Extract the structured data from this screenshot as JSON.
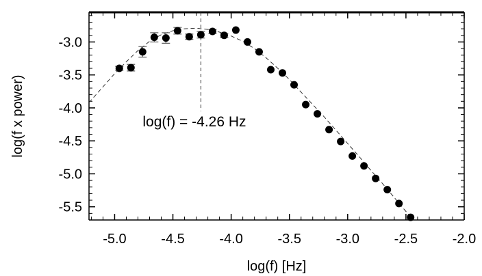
{
  "chart_data": {
    "type": "scatter",
    "xlabel": "log(f) [Hz]",
    "ylabel": "log(f x power)",
    "xlim": [
      -5.22,
      -2.0
    ],
    "ylim": [
      -5.7,
      -2.55
    ],
    "xticks": [
      "-5.0",
      "-4.5",
      "-4.0",
      "-3.5",
      "-3.0",
      "-2.5",
      "-2.0"
    ],
    "xtick_values": [
      -5.0,
      -4.5,
      -4.0,
      -3.5,
      -3.0,
      -2.5,
      -2.0
    ],
    "yticks": [
      "-3.0",
      "-3.5",
      "-4.0",
      "-4.5",
      "-5.0",
      "-5.5"
    ],
    "ytick_values": [
      -3.0,
      -3.5,
      -4.0,
      -4.5,
      -5.0,
      -5.5
    ],
    "grid": false,
    "series": [
      {
        "marker": "filled-circle",
        "color": "#000000",
        "points": [
          {
            "x": -4.96,
            "y": -3.4,
            "err": 0.03
          },
          {
            "x": -4.86,
            "y": -3.39,
            "err": 0.05
          },
          {
            "x": -4.76,
            "y": -3.15,
            "err": 0.08
          },
          {
            "x": -4.66,
            "y": -2.93,
            "err": 0.07
          },
          {
            "x": -4.56,
            "y": -2.94,
            "err": 0.08
          },
          {
            "x": -4.46,
            "y": -2.83,
            "err": 0.05
          },
          {
            "x": -4.36,
            "y": -2.92,
            "err": 0.04
          },
          {
            "x": -4.26,
            "y": -2.89,
            "err": 0.05
          },
          {
            "x": -4.16,
            "y": -2.84,
            "err": 0.03
          },
          {
            "x": -4.06,
            "y": -2.9,
            "err": 0.03
          },
          {
            "x": -3.96,
            "y": -2.82,
            "err": 0.0
          },
          {
            "x": -3.86,
            "y": -3.0,
            "err": 0.0
          },
          {
            "x": -3.76,
            "y": -3.15,
            "err": 0.0
          },
          {
            "x": -3.66,
            "y": -3.42,
            "err": 0.0
          },
          {
            "x": -3.56,
            "y": -3.47,
            "err": 0.0
          },
          {
            "x": -3.46,
            "y": -3.65,
            "err": 0.0
          },
          {
            "x": -3.36,
            "y": -3.95,
            "err": 0.0
          },
          {
            "x": -3.26,
            "y": -4.09,
            "err": 0.0
          },
          {
            "x": -3.16,
            "y": -4.33,
            "err": 0.0
          },
          {
            "x": -3.06,
            "y": -4.51,
            "err": 0.0
          },
          {
            "x": -2.96,
            "y": -4.73,
            "err": 0.0
          },
          {
            "x": -2.86,
            "y": -4.88,
            "err": 0.0
          },
          {
            "x": -2.76,
            "y": -5.07,
            "err": 0.0
          },
          {
            "x": -2.66,
            "y": -5.24,
            "err": 0.0
          },
          {
            "x": -2.56,
            "y": -5.45,
            "err": 0.0
          },
          {
            "x": -2.46,
            "y": -5.66,
            "err": 0.0
          }
        ]
      }
    ],
    "fit_curve": {
      "style": "dashed",
      "color": "#333333",
      "points": [
        {
          "x": -5.22,
          "y": -3.92
        },
        {
          "x": -5.1,
          "y": -3.68
        },
        {
          "x": -5.0,
          "y": -3.48
        },
        {
          "x": -4.9,
          "y": -3.3
        },
        {
          "x": -4.8,
          "y": -3.13
        },
        {
          "x": -4.7,
          "y": -2.99
        },
        {
          "x": -4.6,
          "y": -2.89
        },
        {
          "x": -4.5,
          "y": -2.83
        },
        {
          "x": -4.4,
          "y": -2.8
        },
        {
          "x": -4.3,
          "y": -2.79
        },
        {
          "x": -4.2,
          "y": -2.81
        },
        {
          "x": -4.1,
          "y": -2.85
        },
        {
          "x": -4.0,
          "y": -2.91
        },
        {
          "x": -3.9,
          "y": -2.99
        },
        {
          "x": -3.8,
          "y": -3.1
        },
        {
          "x": -3.7,
          "y": -3.24
        },
        {
          "x": -3.6,
          "y": -3.4
        },
        {
          "x": -3.5,
          "y": -3.57
        },
        {
          "x": -3.4,
          "y": -3.76
        },
        {
          "x": -3.3,
          "y": -3.95
        },
        {
          "x": -3.2,
          "y": -4.14
        },
        {
          "x": -3.1,
          "y": -4.34
        },
        {
          "x": -3.0,
          "y": -4.54
        },
        {
          "x": -2.9,
          "y": -4.74
        },
        {
          "x": -2.8,
          "y": -4.95
        },
        {
          "x": -2.7,
          "y": -5.15
        },
        {
          "x": -2.6,
          "y": -5.36
        },
        {
          "x": -2.5,
          "y": -5.57
        },
        {
          "x": -2.44,
          "y": -5.7
        }
      ]
    },
    "vertical_marker": {
      "x": -4.26,
      "style": "dashed",
      "y_top": -2.55,
      "y_bottom": -4.05
    },
    "annotation": {
      "text": "log(f) = -4.26 Hz",
      "x": -4.26,
      "y": -4.26
    }
  }
}
